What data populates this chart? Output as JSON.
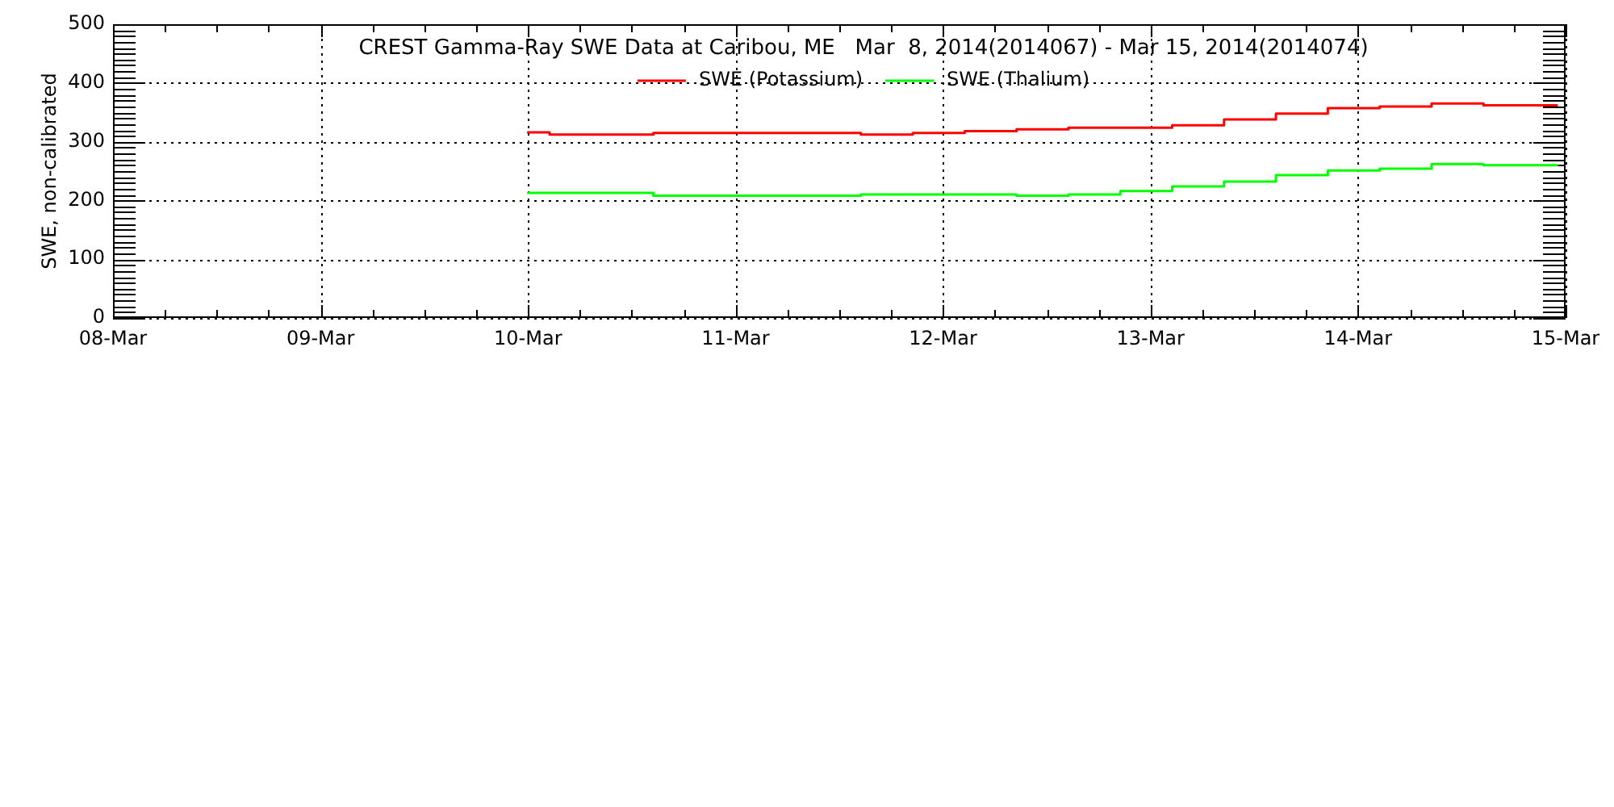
{
  "chart_data": {
    "type": "step",
    "title": "CREST Gamma-Ray SWE Data at Caribou, ME   Mar  8, 2014(2014067) - Mar 15, 2014(2014074)",
    "ylabel": "SWE, non-calibrated",
    "xlim": [
      "2014-03-08",
      "2014-03-15"
    ],
    "xticks": [
      {
        "value": "2014-03-08",
        "label": "08-Mar"
      },
      {
        "value": "2014-03-08T06:00",
        "label": null
      },
      {
        "value": "2014-03-08T12:00",
        "label": null
      },
      {
        "value": "2014-03-08T18:00",
        "label": null
      },
      {
        "value": "2014-03-09",
        "label": "09-Mar"
      },
      {
        "value": "2014-03-09T06:00",
        "label": null
      },
      {
        "value": "2014-03-09T12:00",
        "label": null
      },
      {
        "value": "2014-03-09T18:00",
        "label": null
      },
      {
        "value": "2014-03-10",
        "label": "10-Mar"
      },
      {
        "value": "2014-03-10T06:00",
        "label": null
      },
      {
        "value": "2014-03-10T12:00",
        "label": null
      },
      {
        "value": "2014-03-10T18:00",
        "label": null
      },
      {
        "value": "2014-03-11",
        "label": "11-Mar"
      },
      {
        "value": "2014-03-11T06:00",
        "label": null
      },
      {
        "value": "2014-03-11T12:00",
        "label": null
      },
      {
        "value": "2014-03-11T18:00",
        "label": null
      },
      {
        "value": "2014-03-12",
        "label": "12-Mar"
      },
      {
        "value": "2014-03-12T06:00",
        "label": null
      },
      {
        "value": "2014-03-12T12:00",
        "label": null
      },
      {
        "value": "2014-03-12T18:00",
        "label": null
      },
      {
        "value": "2014-03-13",
        "label": "13-Mar"
      },
      {
        "value": "2014-03-13T06:00",
        "label": null
      },
      {
        "value": "2014-03-13T12:00",
        "label": null
      },
      {
        "value": "2014-03-13T18:00",
        "label": null
      },
      {
        "value": "2014-03-14",
        "label": "14-Mar"
      },
      {
        "value": "2014-03-14T06:00",
        "label": null
      },
      {
        "value": "2014-03-14T12:00",
        "label": null
      },
      {
        "value": "2014-03-14T18:00",
        "label": null
      },
      {
        "value": "2014-03-15",
        "label": "15-Mar"
      }
    ],
    "ylim": [
      0,
      500
    ],
    "yticks": [
      0,
      {
        "value": 10,
        "label": null
      },
      {
        "value": 20,
        "label": null
      },
      {
        "value": 30,
        "label": null
      },
      {
        "value": 40,
        "label": null
      },
      {
        "value": 50,
        "label": null
      },
      {
        "value": 60,
        "label": null
      },
      {
        "value": 70,
        "label": null
      },
      {
        "value": 80,
        "label": null
      },
      {
        "value": 90,
        "label": null
      },
      100,
      {
        "value": 110,
        "label": null
      },
      {
        "value": 120,
        "label": null
      },
      {
        "value": 130,
        "label": null
      },
      {
        "value": 140,
        "label": null
      },
      {
        "value": 150,
        "label": null
      },
      {
        "value": 160,
        "label": null
      },
      {
        "value": 170,
        "label": null
      },
      {
        "value": 180,
        "label": null
      },
      {
        "value": 190,
        "label": null
      },
      200,
      {
        "value": 210,
        "label": null
      },
      {
        "value": 220,
        "label": null
      },
      {
        "value": 230,
        "label": null
      },
      {
        "value": 240,
        "label": null
      },
      {
        "value": 250,
        "label": null
      },
      {
        "value": 260,
        "label": null
      },
      {
        "value": 270,
        "label": null
      },
      {
        "value": 280,
        "label": null
      },
      {
        "value": 290,
        "label": null
      },
      300,
      {
        "value": 310,
        "label": null
      },
      {
        "value": 320,
        "label": null
      },
      {
        "value": 330,
        "label": null
      },
      {
        "value": 340,
        "label": null
      },
      {
        "value": 350,
        "label": null
      },
      {
        "value": 360,
        "label": null
      },
      {
        "value": 370,
        "label": null
      },
      {
        "value": 380,
        "label": null
      },
      {
        "value": 390,
        "label": null
      },
      400,
      {
        "value": 410,
        "label": null
      },
      {
        "value": 420,
        "label": null
      },
      {
        "value": 430,
        "label": null
      },
      {
        "value": 440,
        "label": null
      },
      {
        "value": 450,
        "label": null
      },
      {
        "value": 460,
        "label": null
      },
      {
        "value": 470,
        "label": null
      },
      {
        "value": 480,
        "label": null
      },
      {
        "value": 490,
        "label": null
      },
      500
    ],
    "grid": true,
    "legend": "top",
    "series": [
      {
        "name": "SWE (Potassium)",
        "color": "#ff0000",
        "x": [
          "2014-03-10T00:00",
          "2014-03-10T02:30",
          "2014-03-10T14:30",
          "2014-03-11T14:30",
          "2014-03-11T20:30",
          "2014-03-12T02:30",
          "2014-03-12T08:30",
          "2014-03-12T14:30",
          "2014-03-13T02:30",
          "2014-03-13T08:30",
          "2014-03-13T14:30",
          "2014-03-13T20:30",
          "2014-03-14T02:30",
          "2014-03-14T08:30",
          "2014-03-14T14:30",
          "2014-03-14T23:00"
        ],
        "values": [
          316,
          312,
          315,
          312,
          315,
          318,
          321,
          324,
          328,
          338,
          348,
          357,
          360,
          365,
          362,
          362
        ]
      },
      {
        "name": "SWE (Thalium)",
        "color": "#00ff00",
        "x": [
          "2014-03-10T00:00",
          "2014-03-10T14:30",
          "2014-03-11T14:30",
          "2014-03-12T08:30",
          "2014-03-12T14:30",
          "2014-03-12T20:30",
          "2014-03-13T02:30",
          "2014-03-13T08:30",
          "2014-03-13T14:30",
          "2014-03-13T20:30",
          "2014-03-14T02:30",
          "2014-03-14T08:30",
          "2014-03-14T14:30",
          "2014-03-14T23:00"
        ],
        "values": [
          213,
          208,
          210,
          208,
          210,
          216,
          224,
          232,
          243,
          251,
          254,
          262,
          260,
          260
        ]
      }
    ]
  }
}
